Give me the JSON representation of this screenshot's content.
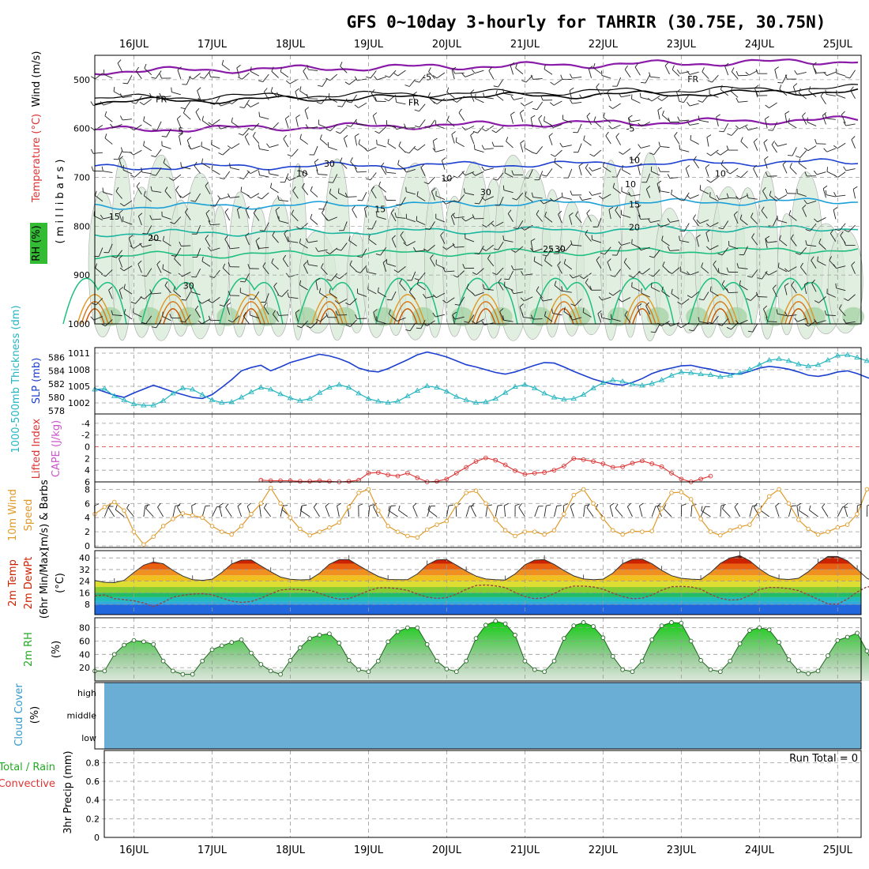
{
  "title": "GFS 0~10day 3-hourly for TAHRIR (30.75E, 30.75N)",
  "colors": {
    "slp": "#1c3fcf",
    "thickness": "#26b5c0",
    "li": "#dd3333",
    "wind": "#e09a2a",
    "temp": "#cc2200",
    "rh": "#22aa22",
    "cloud": "#6aaed6",
    "cape": "#cc55cc",
    "purple": "#8a1aa8",
    "mslabel": "#000000"
  },
  "dates": [
    "16JUL",
    "17JUL",
    "18JUL",
    "19JUL",
    "20JUL",
    "21JUL",
    "22JUL",
    "23JUL",
    "24JUL",
    "25JUL"
  ],
  "time_axis": {
    "start_day": 15.5,
    "end_day": 25.3
  },
  "panels": {
    "upper": {
      "labels": {
        "wind": "Wind (m/s)",
        "temp": "Temperature (°C)",
        "rh": "RH (%)",
        "mb": "( m i l l i b a r s )"
      },
      "levels": [
        500,
        600,
        700,
        800,
        900,
        1000
      ],
      "contour_labels": [
        {
          "text": "-5",
          "day": 19.75,
          "mb": 493,
          "color": "purple"
        },
        {
          "text": "FR",
          "day": 16.35,
          "mb": 538,
          "color": "black"
        },
        {
          "text": "FR",
          "day": 19.58,
          "mb": 545,
          "color": "black"
        },
        {
          "text": "FR",
          "day": 23.15,
          "mb": 497,
          "color": "black"
        },
        {
          "text": "5",
          "day": 16.6,
          "mb": 603,
          "color": "purple"
        },
        {
          "text": "-5",
          "day": 22.35,
          "mb": 598,
          "color": "purple"
        },
        {
          "text": "10",
          "day": 18.15,
          "mb": 690,
          "color": "blue"
        },
        {
          "text": "10",
          "day": 22.4,
          "mb": 663,
          "color": "blue"
        },
        {
          "text": "15",
          "day": 15.75,
          "mb": 778,
          "color": "cyan"
        },
        {
          "text": "15",
          "day": 19.15,
          "mb": 763,
          "color": "cyan"
        },
        {
          "text": "15",
          "day": 22.4,
          "mb": 753,
          "color": "cyan"
        },
        {
          "text": "20",
          "day": 16.25,
          "mb": 822,
          "color": "teal"
        },
        {
          "text": "20",
          "day": 22.4,
          "mb": 800,
          "color": "teal"
        },
        {
          "text": "25",
          "day": 21.3,
          "mb": 845,
          "color": "green"
        },
        {
          "text": "30",
          "day": 18.5,
          "mb": 670,
          "color": "gray"
        },
        {
          "text": "30",
          "day": 20.5,
          "mb": 728,
          "color": "gray"
        },
        {
          "text": "10",
          "day": 20.0,
          "mb": 700,
          "color": "gray"
        },
        {
          "text": "30",
          "day": 21.45,
          "mb": 845,
          "color": "gray"
        },
        {
          "text": "10",
          "day": 22.35,
          "mb": 712,
          "color": "gray"
        },
        {
          "text": "10",
          "day": 23.5,
          "mb": 690,
          "color": "gray"
        },
        {
          "text": "30",
          "day": 16.7,
          "mb": 920,
          "color": "gray"
        }
      ]
    },
    "slp": {
      "labels": {
        "thickness": "1000-500mb Thickness (dm)",
        "slp": "SLP (mb)"
      },
      "slp_ticks": [
        1002,
        1005,
        1008,
        1011
      ],
      "thick_ticks": [
        578,
        580,
        582,
        584,
        586
      ]
    },
    "li": {
      "labels": {
        "li": "Lifted Index",
        "cape": "CAPE (J/kg)"
      },
      "ticks": [
        -4,
        -2,
        0,
        2,
        4,
        6
      ]
    },
    "wind": {
      "labels": {
        "wind": "10m Wind",
        "speed": "Speed",
        "barbs": "(m/s) & Barbs"
      },
      "ticks": [
        0,
        2,
        4,
        6,
        8
      ]
    },
    "temp": {
      "labels": {
        "temp": "2m Temp",
        "dewpt": "2m DewPt",
        "minmax": "(6hr Min/Max)",
        "unit": "(°C)"
      },
      "ticks": [
        8,
        16,
        24,
        32,
        40
      ]
    },
    "rh": {
      "labels": {
        "rh": "2m RH",
        "unit": "(%)"
      },
      "ticks": [
        20,
        40,
        60,
        80
      ]
    },
    "cloud": {
      "labels": {
        "cloud": "Cloud Cover",
        "unit": "(%)"
      },
      "levels": [
        "high",
        "middle",
        "low"
      ]
    },
    "precip": {
      "labels": {
        "total": "Total / Rain",
        "conv": "Convective",
        "axis": "3hr Precip (mm)"
      },
      "ticks": [
        0,
        0.2,
        0.4,
        0.6,
        0.8
      ],
      "run_total": "Run Total = 0"
    }
  },
  "chart_data": [
    {
      "type": "line",
      "title": "SLP (mb)",
      "x": "3-hourly steps from 15JUL 12Z",
      "series": [
        {
          "name": "SLP",
          "values": [
            1004.6,
            1004,
            1003.4,
            1003,
            1003.8,
            1004.5,
            1005.2,
            1004.6,
            1004,
            1003.5,
            1003,
            1002.8,
            1003.5,
            1004.8,
            1006.2,
            1007.8,
            1008.4,
            1008.8,
            1007.8,
            1008.5,
            1009.3,
            1009.8,
            1010.3,
            1010.8,
            1010.5,
            1010,
            1009.3,
            1008.3,
            1007.8,
            1007.6,
            1008.2,
            1009,
            1009.8,
            1010.7,
            1011.2,
            1010.8,
            1010.3,
            1009.6,
            1008.9,
            1008.5,
            1008,
            1007.5,
            1007.2,
            1007.6,
            1008.2,
            1008.8,
            1009.3,
            1009.2,
            1008.5,
            1007.7,
            1007,
            1006.3,
            1005.8,
            1005.4,
            1005.2,
            1005.7,
            1006.4,
            1007.3,
            1007.9,
            1008.3,
            1008.7,
            1008.8,
            1008.4,
            1008.1,
            1007.6,
            1007.3,
            1007.2,
            1007.7,
            1008.3,
            1008.6,
            1008.4,
            1008.1,
            1007.6,
            1007,
            1006.8,
            1007.1,
            1007.6,
            1007.8,
            1007.3,
            1006.6,
            1006
          ]
        }
      ]
    },
    {
      "type": "line",
      "title": "1000-500mb Thickness (dm)",
      "series": [
        {
          "name": "Thickness",
          "values": [
            581.2,
            581.3,
            580.2,
            579.6,
            579,
            578.8,
            578.8,
            579.5,
            580.6,
            581.4,
            581.2,
            580.4,
            579.6,
            579.2,
            579.3,
            580,
            580.8,
            581.5,
            581.2,
            580.5,
            579.9,
            579.5,
            579.8,
            580.7,
            581.5,
            581.9,
            581.5,
            580.6,
            579.8,
            579.4,
            579.2,
            579.4,
            580.2,
            581,
            581.7,
            581.5,
            580.9,
            580.1,
            579.6,
            579.2,
            579.3,
            579.8,
            580.7,
            581.6,
            581.9,
            581.4,
            580.6,
            580,
            579.7,
            579.8,
            580.4,
            581.4,
            582.2,
            582.6,
            582.4,
            582,
            581.8,
            582.1,
            582.6,
            583.3,
            583.8,
            583.7,
            583.5,
            583.4,
            583.1,
            583.3,
            583.7,
            584.2,
            584.9,
            585.6,
            585.8,
            585.5,
            585,
            584.7,
            584.9,
            585.6,
            586.3,
            586.4,
            586,
            585.5,
            585.2
          ]
        }
      ]
    },
    {
      "type": "line",
      "title": "Lifted Index",
      "series": [
        {
          "name": "LI",
          "start_index": 17,
          "values": [
            5.7,
            5.8,
            5.8,
            5.8,
            5.9,
            5.9,
            5.8,
            5.9,
            6,
            5.9,
            5.7,
            4.5,
            4.4,
            4.8,
            5,
            4.5,
            5.3,
            6,
            5.9,
            5.5,
            4.5,
            3.5,
            2.5,
            1.9,
            2.3,
            3.1,
            4.1,
            4.7,
            4.5,
            4.4,
            4,
            3.3,
            2,
            2.2,
            2.5,
            2.9,
            3.5,
            3.4,
            2.8,
            2.4,
            2.9,
            3.4,
            4.5,
            5.5,
            6,
            5.5,
            5
          ]
        }
      ]
    },
    {
      "type": "line",
      "title": "10m Wind Speed (m/s)",
      "series": [
        {
          "name": "Speed",
          "values": [
            4.5,
            5.5,
            6.2,
            5,
            2,
            0.2,
            1.3,
            2.8,
            3.8,
            4.6,
            4.3,
            4,
            2.8,
            2,
            1.6,
            2.8,
            4.5,
            6,
            8.2,
            6,
            4,
            2.4,
            1.5,
            2,
            2.6,
            3.3,
            5.5,
            7.5,
            8,
            5,
            2.8,
            2,
            1.4,
            1.2,
            2.3,
            3,
            3.5,
            5.8,
            7.5,
            7.8,
            6,
            3.7,
            2.2,
            1.4,
            2,
            2,
            1.6,
            2.2,
            4.5,
            7.2,
            8,
            6,
            3.9,
            2.2,
            1.6,
            2.1,
            2,
            2.1,
            5.3,
            7.5,
            7.6,
            6.6,
            3.8,
            2,
            1.5,
            2.2,
            2.7,
            3,
            5,
            7,
            8,
            6,
            3.7,
            2.4,
            1.6,
            2,
            2.6,
            3,
            4.5,
            8,
            7.5
          ]
        }
      ]
    },
    {
      "type": "area",
      "title": "2m Temp / 2m DewPt (°C)",
      "series": [
        {
          "name": "Temp",
          "values": [
            24.5,
            23.2,
            23,
            24.6,
            30,
            35,
            37.2,
            36,
            31.4,
            27.5,
            25,
            24.6,
            25.4,
            30,
            35.8,
            38.5,
            38.6,
            34.5,
            30.5,
            26.8,
            25.3,
            24.9,
            25.1,
            29.5,
            35.6,
            38.8,
            38.8,
            34.8,
            30.9,
            27.3,
            25.2,
            25,
            25,
            29,
            35.2,
            38.6,
            38.9,
            35,
            31,
            27.5,
            25.5,
            25,
            24.8,
            28.9,
            35.2,
            38.5,
            38.8,
            35.5,
            31.3,
            27.6,
            25.5,
            25,
            25.4,
            29.5,
            36,
            39,
            39.2,
            36,
            31.5,
            27.8,
            26,
            25.4,
            25.1,
            30,
            36.2,
            40,
            41.5,
            38,
            32.5,
            28,
            25.6,
            25.2,
            26,
            30.5,
            36.5,
            41,
            41,
            38,
            32,
            26,
            23
          ]
        },
        {
          "name": "DewPt",
          "values": [
            14,
            14.5,
            12,
            11.3,
            10.5,
            9,
            6.5,
            9.5,
            13,
            14.3,
            15.2,
            15.4,
            14.7,
            12.4,
            10.3,
            9.4,
            10,
            12.3,
            15.3,
            17.9,
            18.5,
            18.3,
            17.7,
            15.6,
            13.2,
            11.6,
            12,
            14.6,
            17.4,
            19.4,
            19.4,
            18.9,
            17.7,
            15.2,
            13,
            12.2,
            12.7,
            15.2,
            18.4,
            21,
            21.4,
            20.7,
            19.6,
            16.2,
            13.4,
            12,
            12.6,
            15.5,
            18.9,
            20.6,
            20.6,
            20,
            18.5,
            15.8,
            13.4,
            12,
            12.3,
            14.5,
            17.8,
            20.2,
            20.4,
            20,
            18.5,
            14.9,
            12.2,
            11,
            11.4,
            14.2,
            18.2,
            19.7,
            19.6,
            18.9,
            17.5,
            14.6,
            11.5,
            8.4,
            8.2,
            11.7,
            16.6,
            20.1,
            20
          ]
        }
      ]
    },
    {
      "type": "area",
      "title": "2m RH (%)",
      "series": [
        {
          "name": "RH",
          "values": [
            15,
            15,
            40,
            54,
            61,
            59,
            55,
            30,
            15,
            10,
            10,
            30,
            47,
            53,
            58,
            62,
            42,
            25,
            15,
            10,
            31,
            50,
            64,
            69,
            71,
            57,
            31,
            17,
            14,
            30,
            59,
            74,
            80,
            80,
            55,
            30,
            18,
            14,
            30,
            64,
            84,
            90,
            86,
            69,
            30,
            17,
            14,
            30,
            64,
            83,
            88,
            82,
            65,
            37,
            17,
            14,
            30,
            62,
            83,
            88,
            87,
            60,
            31,
            17,
            14,
            30,
            56,
            76,
            80,
            77,
            58,
            32,
            15,
            11,
            15,
            38,
            61,
            66,
            72,
            45,
            13
          ]
        }
      ]
    },
    {
      "type": "bar",
      "title": "3hr Precip (mm)",
      "series": [
        {
          "name": "Total",
          "values": []
        }
      ],
      "ylim": [
        0,
        0.9
      ]
    }
  ]
}
